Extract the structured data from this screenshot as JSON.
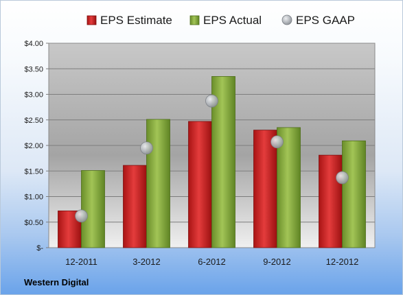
{
  "chart_data": {
    "type": "bar",
    "categories": [
      "12-2011",
      "3-2012",
      "6-2012",
      "9-2012",
      "12-2012"
    ],
    "series": [
      {
        "name": "EPS Estimate",
        "kind": "bar",
        "color": "#d42a2a",
        "values": [
          0.72,
          1.61,
          2.47,
          2.3,
          1.81
        ]
      },
      {
        "name": "EPS Actual",
        "kind": "bar",
        "color": "#8cb43c",
        "values": [
          1.51,
          2.51,
          3.35,
          2.35,
          2.09
        ]
      },
      {
        "name": "EPS GAAP",
        "kind": "marker",
        "color": "#b7bcc2",
        "values": [
          0.62,
          1.95,
          2.87,
          2.07,
          1.37
        ]
      }
    ],
    "y_ticks": [
      "$-",
      "$0.50",
      "$1.00",
      "$1.50",
      "$2.00",
      "$2.50",
      "$3.00",
      "$3.50",
      "$4.00"
    ],
    "ylim": [
      0,
      4
    ],
    "grid": true,
    "legend_position": "top"
  },
  "footer": {
    "company": "Western Digital"
  }
}
